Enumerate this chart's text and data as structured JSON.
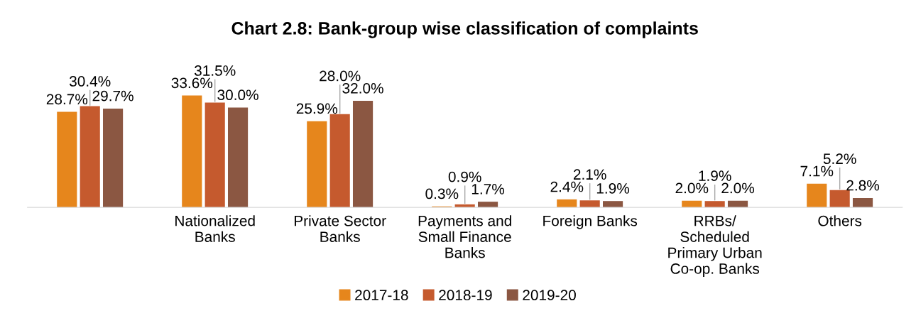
{
  "chart_data": {
    "type": "bar",
    "title": "Chart 2.8: Bank-group wise classification of complaints",
    "categories": [
      null,
      "Nationalized Banks",
      "Private Sector Banks",
      "Payments and Small Finance Banks",
      "Foreign Banks",
      "RRBs/ Scheduled Primary Urban Co-op. Banks",
      "Others"
    ],
    "series": [
      {
        "name": "2017-18",
        "color": "#e6861c",
        "values": [
          28.7,
          33.6,
          25.9,
          0.3,
          2.4,
          2.0,
          7.1
        ],
        "value_labels": [
          "28.7%",
          "33.6%",
          "25.9%",
          "0.3%",
          "2.4%",
          "2.0%",
          "7.1%"
        ]
      },
      {
        "name": "2018-19",
        "color": "#c55a2e",
        "values": [
          30.4,
          31.5,
          28.0,
          0.9,
          2.1,
          1.9,
          5.2
        ],
        "value_labels": [
          "30.4%",
          "31.5%",
          "28.0%",
          "0.9%",
          "2.1%",
          "1.9%",
          "5.2%"
        ]
      },
      {
        "name": "2019-20",
        "color": "#8b5742",
        "values": [
          29.7,
          30.0,
          32.0,
          1.7,
          1.9,
          2.0,
          2.8
        ],
        "value_labels": [
          "29.7%",
          "30.0%",
          "32.0%",
          "1.7%",
          "1.9%",
          "2.0%",
          "2.8%"
        ]
      }
    ],
    "legend": "bottom",
    "grid": false
  }
}
